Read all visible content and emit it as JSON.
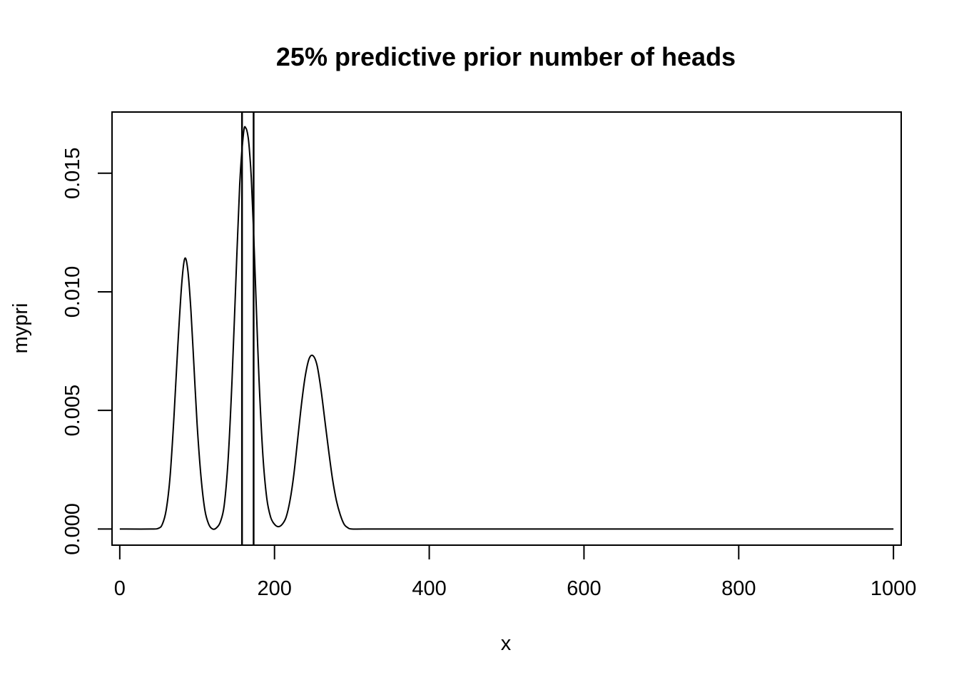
{
  "chart_data": {
    "type": "line",
    "title": "25% predictive prior number of heads",
    "xlabel": "x",
    "ylabel": "mypri",
    "xlim": [
      -10,
      1010
    ],
    "ylim": [
      -0.00068,
      0.01758
    ],
    "xticks": [
      0,
      200,
      400,
      600,
      800,
      1000
    ],
    "yticks": [
      0.0,
      0.005,
      0.01,
      0.015
    ],
    "xtick_labels": [
      "0",
      "200",
      "400",
      "600",
      "800",
      "1000"
    ],
    "ytick_labels": [
      "0.000",
      "0.005",
      "0.010",
      "0.015"
    ],
    "vertical_lines": [
      158,
      173
    ],
    "series": [
      {
        "x": [
          0,
          40,
          50,
          55,
          60,
          65,
          70,
          75,
          80,
          84,
          88,
          92,
          96,
          100,
          105,
          110,
          115,
          120,
          125,
          130,
          135,
          140,
          145,
          150,
          155,
          160,
          163,
          166,
          168,
          170,
          173,
          176,
          180,
          185,
          190,
          195,
          200,
          205,
          210,
          215,
          220,
          225,
          230,
          235,
          240,
          245,
          250,
          255,
          260,
          265,
          270,
          275,
          280,
          285,
          290,
          295,
          300,
          320,
          400,
          600,
          800,
          1000
        ],
        "y": [
          0.0,
          0.0,
          3e-05,
          0.0002,
          0.0008,
          0.0022,
          0.0047,
          0.0077,
          0.0103,
          0.0114,
          0.0109,
          0.0092,
          0.0068,
          0.0044,
          0.0022,
          0.0008,
          0.0002,
          0.0,
          5e-05,
          0.0003,
          0.001,
          0.0029,
          0.0062,
          0.0104,
          0.0145,
          0.0167,
          0.0169,
          0.0165,
          0.0158,
          0.0148,
          0.0125,
          0.0098,
          0.0063,
          0.0031,
          0.0013,
          0.0005,
          0.0002,
          0.0001,
          0.0002,
          0.0005,
          0.0012,
          0.0023,
          0.0038,
          0.0053,
          0.0065,
          0.0072,
          0.0073,
          0.0069,
          0.0059,
          0.0046,
          0.0033,
          0.0021,
          0.0012,
          0.0006,
          0.0002,
          5e-05,
          0.0,
          0.0,
          0.0,
          0.0,
          0.0,
          0.0
        ]
      }
    ]
  }
}
